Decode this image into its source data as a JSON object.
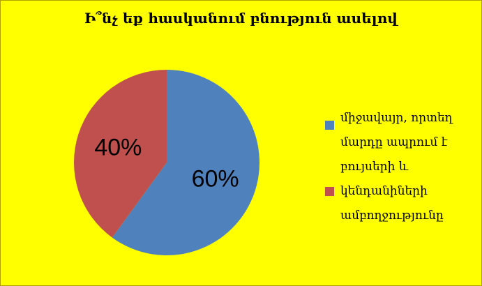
{
  "colors": {
    "background": "#ffff00",
    "series1": "#4f81bd",
    "series2": "#c0504d"
  },
  "chart_data": {
    "type": "pie",
    "title": "Ի՞նչ եք հասկանում բնություն ասելով",
    "categories": [
      "միջավայր, որտեղ մարդը ապրում է բույսերի և",
      "կենդանիների ամբողջությունը"
    ],
    "legend_lines": [
      [
        "միջավայր, որտեղ",
        "մարդը ապրում է",
        "բույսերի և"
      ],
      [
        "կենդանիների",
        "ամբողջությունը"
      ]
    ],
    "values": [
      60,
      40
    ],
    "data_labels": [
      "60%",
      "40%"
    ],
    "legend": "right"
  }
}
